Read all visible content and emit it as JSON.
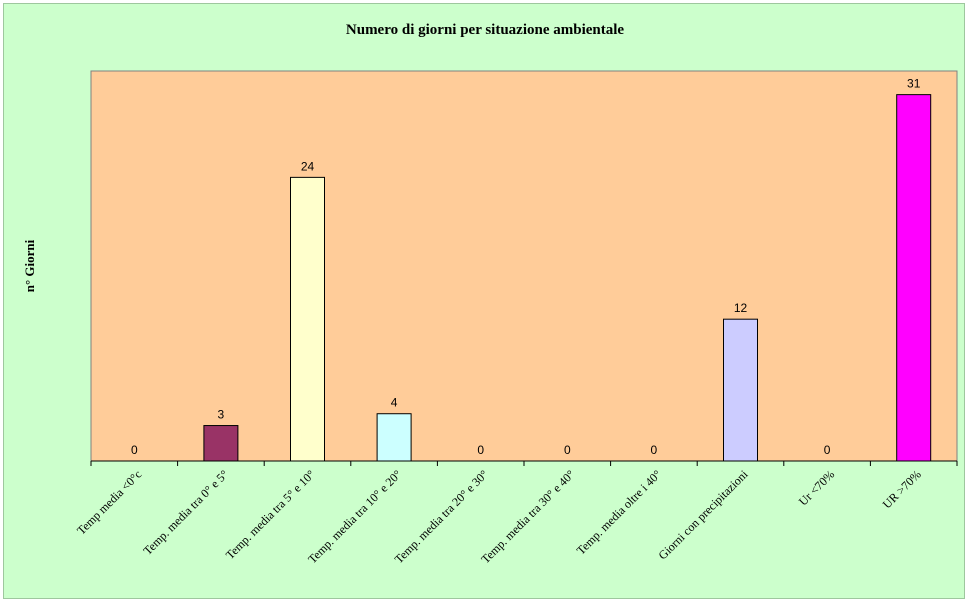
{
  "chart_data": {
    "type": "bar",
    "title": "Numero di giorni per situazione ambientale",
    "xlabel": "",
    "ylabel": "n° Giorni",
    "ylim": [
      0,
      33
    ],
    "grid": false,
    "legend": "none",
    "categories": [
      "Temp media <0°c",
      "Temp. media tra 0° e 5°",
      "Temp. media tra 5° e 10°",
      "Temp. media tra 10° e 20°",
      "Temp. media tra 20° e 30°",
      "Temp. media tra 30° e 40°",
      "Temp. media oltre i 40°",
      "Giorni con precipitazioni",
      "Ur <70%",
      "UR >70%"
    ],
    "values": [
      0,
      3,
      24,
      4,
      0,
      0,
      0,
      12,
      0,
      31
    ],
    "bar_colors": [
      "#ccffff",
      "#993366",
      "#ffffcc",
      "#ccffff",
      "#ccffff",
      "#ccffff",
      "#ccffff",
      "#ccccff",
      "#ccffff",
      "#ff00ff"
    ],
    "plot_background": "#ffcc99",
    "chart_background": "#ccffcc"
  }
}
